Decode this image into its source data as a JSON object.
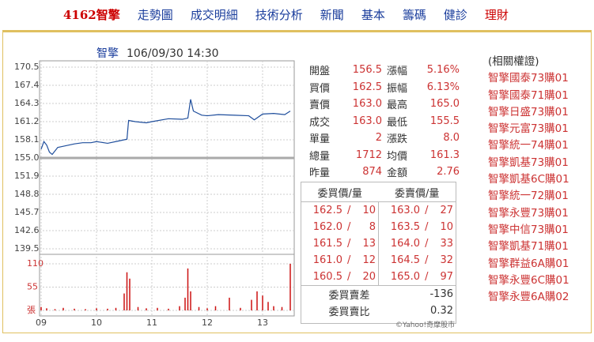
{
  "nav": [
    "4162智擎",
    "走勢圖",
    "成交明細",
    "技術分析",
    "新聞",
    "基本",
    "籌碼",
    "健診",
    "理財"
  ],
  "chart_data": {
    "type": "line",
    "title": "智擎",
    "subtitle": "106/09/30 14:30",
    "xlim": [
      9,
      13.5
    ],
    "xticks": [
      {
        "value": 9,
        "label": "09"
      },
      {
        "value": 10,
        "label": "10"
      },
      {
        "value": 11,
        "label": "11"
      },
      {
        "value": 12,
        "label": "12"
      },
      {
        "value": 13,
        "label": "13"
      }
    ],
    "ylim": [
      139.5,
      170.5
    ],
    "yticks": [
      170.5,
      167.4,
      164.3,
      161.2,
      158.1,
      {
        "value": 155,
        "label": "155.0"
      },
      151.9,
      148.8,
      145.7,
      142.6,
      139.5
    ],
    "y2lim": [
      0,
      110
    ],
    "y2ticks": [
      110,
      55,
      {
        "value": 0,
        "label": "張"
      }
    ],
    "reference_line": 155,
    "grid": true,
    "series": [
      {
        "name": "price",
        "color": "#1f4e9c",
        "x": [
          9,
          9.05,
          9.1,
          9.15,
          9.2,
          9.3,
          9.4,
          9.5,
          9.6,
          9.75,
          9.9,
          10,
          10.2,
          10.4,
          10.55,
          10.58,
          10.7,
          10.9,
          11,
          11.3,
          11.55,
          11.65,
          11.7,
          11.75,
          11.9,
          12,
          12.2,
          12.5,
          12.75,
          12.85,
          13,
          13.2,
          13.4,
          13.5
        ],
        "values": [
          156.5,
          157.8,
          157.2,
          156.0,
          155.6,
          156.8,
          157.0,
          157.2,
          157.4,
          157.6,
          157.6,
          157.8,
          157.5,
          157.9,
          158.2,
          161.4,
          161.2,
          161.0,
          161.2,
          161.7,
          161.6,
          161.8,
          165.0,
          163.0,
          162.3,
          162.2,
          162.4,
          162.3,
          162.2,
          161.5,
          162.5,
          162.6,
          162.4,
          163.0
        ]
      },
      {
        "name": "volume",
        "type": "bar",
        "axis": "y2",
        "color": "#cc1111",
        "x": [
          9,
          9.1,
          9.25,
          9.4,
          9.6,
          9.8,
          10,
          10.2,
          10.35,
          10.5,
          10.55,
          10.6,
          10.75,
          10.9,
          11.1,
          11.3,
          11.5,
          11.6,
          11.65,
          11.7,
          11.85,
          12,
          12.15,
          12.4,
          12.6,
          12.8,
          12.9,
          13,
          13.1,
          13.2,
          13.35,
          13.5
        ],
        "values": [
          8,
          5,
          3,
          6,
          4,
          3,
          5,
          4,
          6,
          40,
          90,
          75,
          8,
          5,
          6,
          4,
          10,
          30,
          99,
          45,
          8,
          5,
          10,
          30,
          6,
          25,
          45,
          35,
          20,
          10,
          8,
          110
        ]
      }
    ],
    "credit": "©Yahoo!奇摩股市"
  },
  "quote": [
    [
      "開盤",
      "156.5",
      "漲幅",
      "5.16%"
    ],
    [
      "買價",
      "162.5",
      "振幅",
      "6.13%"
    ],
    [
      "賣價",
      "163.0",
      "最高",
      "165.0"
    ],
    [
      "成交",
      "163.0",
      "最低",
      "155.5"
    ],
    [
      "單量",
      "2",
      "漲跌",
      "8.0"
    ],
    [
      "總量",
      "1712",
      "均價",
      "161.3"
    ],
    [
      "昨量",
      "874",
      "金額",
      "2.76"
    ]
  ],
  "orderbook": {
    "headers": [
      "委買價/量",
      "委賣價/量"
    ],
    "sep": "/",
    "rows": [
      [
        "162.5",
        "10",
        "163.0",
        "27"
      ],
      [
        "162.0",
        "8",
        "163.5",
        "10"
      ],
      [
        "161.5",
        "13",
        "164.0",
        "33"
      ],
      [
        "161.0",
        "12",
        "164.5",
        "32"
      ],
      [
        "160.5",
        "20",
        "165.0",
        "97"
      ]
    ],
    "summary": [
      [
        "委買賣差",
        "-136"
      ],
      [
        "委買賣比",
        "0.32"
      ]
    ]
  },
  "warrants": {
    "title": "(相關權證)",
    "items": [
      "智擎國泰73購01",
      "智擎國泰71購01",
      "智擎日盛73購01",
      "智擎元富73購01",
      "智擎統一74購01",
      "智擎凱基73購01",
      "智擎凱基6C購01",
      "智擎統一72購01",
      "智擎永豐73購01",
      "智擎中信73購01",
      "智擎凱基71購01",
      "智擎群益6A購01",
      "智擎永豐6C購01",
      "智擎永豐6A購02"
    ]
  }
}
